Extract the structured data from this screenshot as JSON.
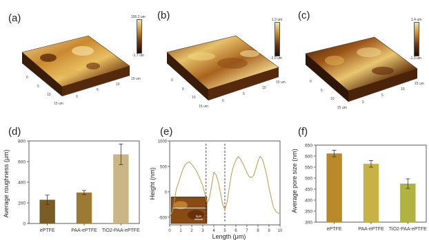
{
  "panel_labels": [
    "(a)",
    "(b)",
    "(c)",
    "(d)",
    "(e)",
    "(f)"
  ],
  "afm": [
    {
      "top_label": "100.2 um",
      "bottom_label": "-1.7 um",
      "tick_labels": [
        "0",
        "5",
        "10",
        "15 um",
        "0",
        "5",
        "10",
        "15 um"
      ]
    },
    {
      "top_label": "1.3 um",
      "bottom_label": "-2.0 um",
      "tick_labels": [
        "0",
        "5",
        "10",
        "15 um",
        "0",
        "5",
        "10",
        "15 um"
      ]
    },
    {
      "top_label": "1.4 um",
      "bottom_label": "-1.3 um",
      "tick_labels": [
        "0",
        "5",
        "10",
        "15 um",
        "0",
        "5",
        "10",
        "15 um"
      ]
    }
  ],
  "colors": {
    "afm_dark": "#2a1406",
    "afm_mid": "#8a4b12",
    "afm_light": "#f0d58a",
    "bar_d": [
      "#7c5c25",
      "#9c7a36",
      "#c9b585"
    ],
    "bar_f": [
      "#b88a2a",
      "#c9b245",
      "#b0b241"
    ],
    "profile": "#b89a45"
  },
  "chart_data": [
    {
      "type": "bar",
      "title": "",
      "xlabel": "",
      "ylabel": "Average roughness (μm)",
      "categories": [
        "ePTFE",
        "PAA-ePTFE",
        "TiO2-PAA-ePTFE"
      ],
      "values": [
        230,
        300,
        670
      ],
      "errors": [
        45,
        20,
        100
      ],
      "ylim": [
        0,
        800
      ],
      "yticks": [
        "0",
        "200",
        "400",
        "600",
        "800"
      ],
      "grid": false
    },
    {
      "type": "line",
      "title": "",
      "xlabel": "Length (μm)",
      "ylabel": "Height (nm)",
      "xlim": [
        0,
        10
      ],
      "ylim": [
        -650,
        1000
      ],
      "xticks": [
        "0",
        "1",
        "2",
        "3",
        "4",
        "5",
        "6",
        "7",
        "8",
        "9",
        "10"
      ],
      "yticks": [
        "-500",
        "0",
        "500",
        "1000"
      ],
      "dashed_lines_x": [
        3.3,
        5.0
      ],
      "inset_scale_text": "2μm",
      "series": [
        {
          "x": [
            0,
            0.3,
            0.6,
            0.9,
            1.2,
            1.5,
            1.8,
            2.1,
            2.4,
            2.7,
            3.0,
            3.2,
            3.4,
            3.6,
            3.8,
            4.0,
            4.2,
            4.4,
            4.6,
            4.8,
            5.0,
            5.2,
            5.4,
            5.6,
            5.8,
            6.0,
            6.2,
            6.4,
            6.6,
            6.8,
            7.0,
            7.2,
            7.4,
            7.6,
            7.8,
            8.0,
            8.2,
            8.4,
            8.6,
            8.8,
            9.0,
            9.2,
            9.4,
            9.6,
            9.8,
            10.0
          ],
          "y": [
            -500,
            -350,
            50,
            250,
            450,
            560,
            590,
            520,
            420,
            280,
            120,
            -50,
            -220,
            -120,
            120,
            380,
            340,
            200,
            -20,
            -240,
            -360,
            -200,
            80,
            350,
            520,
            620,
            690,
            650,
            570,
            480,
            380,
            300,
            280,
            320,
            450,
            600,
            700,
            640,
            500,
            320,
            80,
            -120,
            -300,
            -380,
            -420,
            -420
          ]
        }
      ]
    },
    {
      "type": "bar",
      "title": "",
      "xlabel": "",
      "ylabel": "Average pore size (nm)",
      "categories": [
        "ePTFE",
        "PAA-ePTFE",
        "TiO2-PAA-ePTFE"
      ],
      "values": [
        612,
        565,
        475
      ],
      "errors": [
        15,
        15,
        22
      ],
      "ylim": [
        300,
        650
      ],
      "yticks": [
        "300",
        "350",
        "400",
        "450",
        "500",
        "550",
        "600",
        "650"
      ],
      "grid": false
    }
  ]
}
